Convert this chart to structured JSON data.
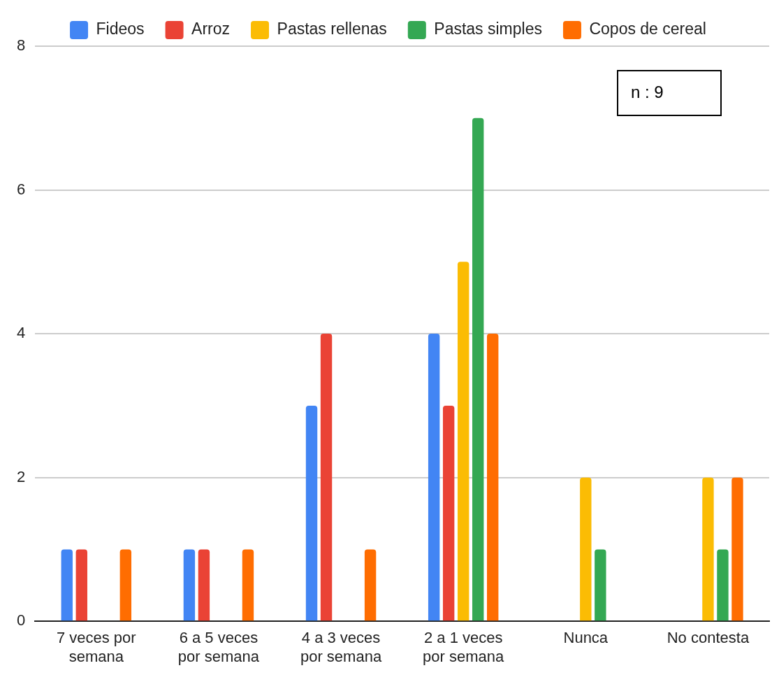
{
  "chart_data": {
    "type": "bar",
    "categories": [
      "7 veces por semana",
      "6 a 5 veces por semana",
      "4 a 3 veces por semana",
      "2 a 1 veces por semana",
      "Nunca",
      "No contesta"
    ],
    "series": [
      {
        "name": "Fideos",
        "color": "#4285f4",
        "values": [
          1,
          1,
          3,
          4,
          0,
          0
        ]
      },
      {
        "name": "Arroz",
        "color": "#ea4335",
        "values": [
          1,
          1,
          4,
          3,
          0,
          0
        ]
      },
      {
        "name": "Pastas rellenas",
        "color": "#fbbc04",
        "values": [
          0,
          0,
          0,
          5,
          2,
          2
        ]
      },
      {
        "name": "Pastas simples",
        "color": "#34a853",
        "values": [
          0,
          0,
          0,
          7,
          1,
          1
        ]
      },
      {
        "name": "Copos de cereal",
        "color": "#ff6d01",
        "values": [
          1,
          1,
          1,
          4,
          0,
          2
        ]
      }
    ],
    "ylim": [
      0,
      8
    ],
    "yticks": [
      0,
      2,
      4,
      6,
      8
    ],
    "grid": "y",
    "legend": "top",
    "annotations": [
      "n : 9"
    ]
  }
}
